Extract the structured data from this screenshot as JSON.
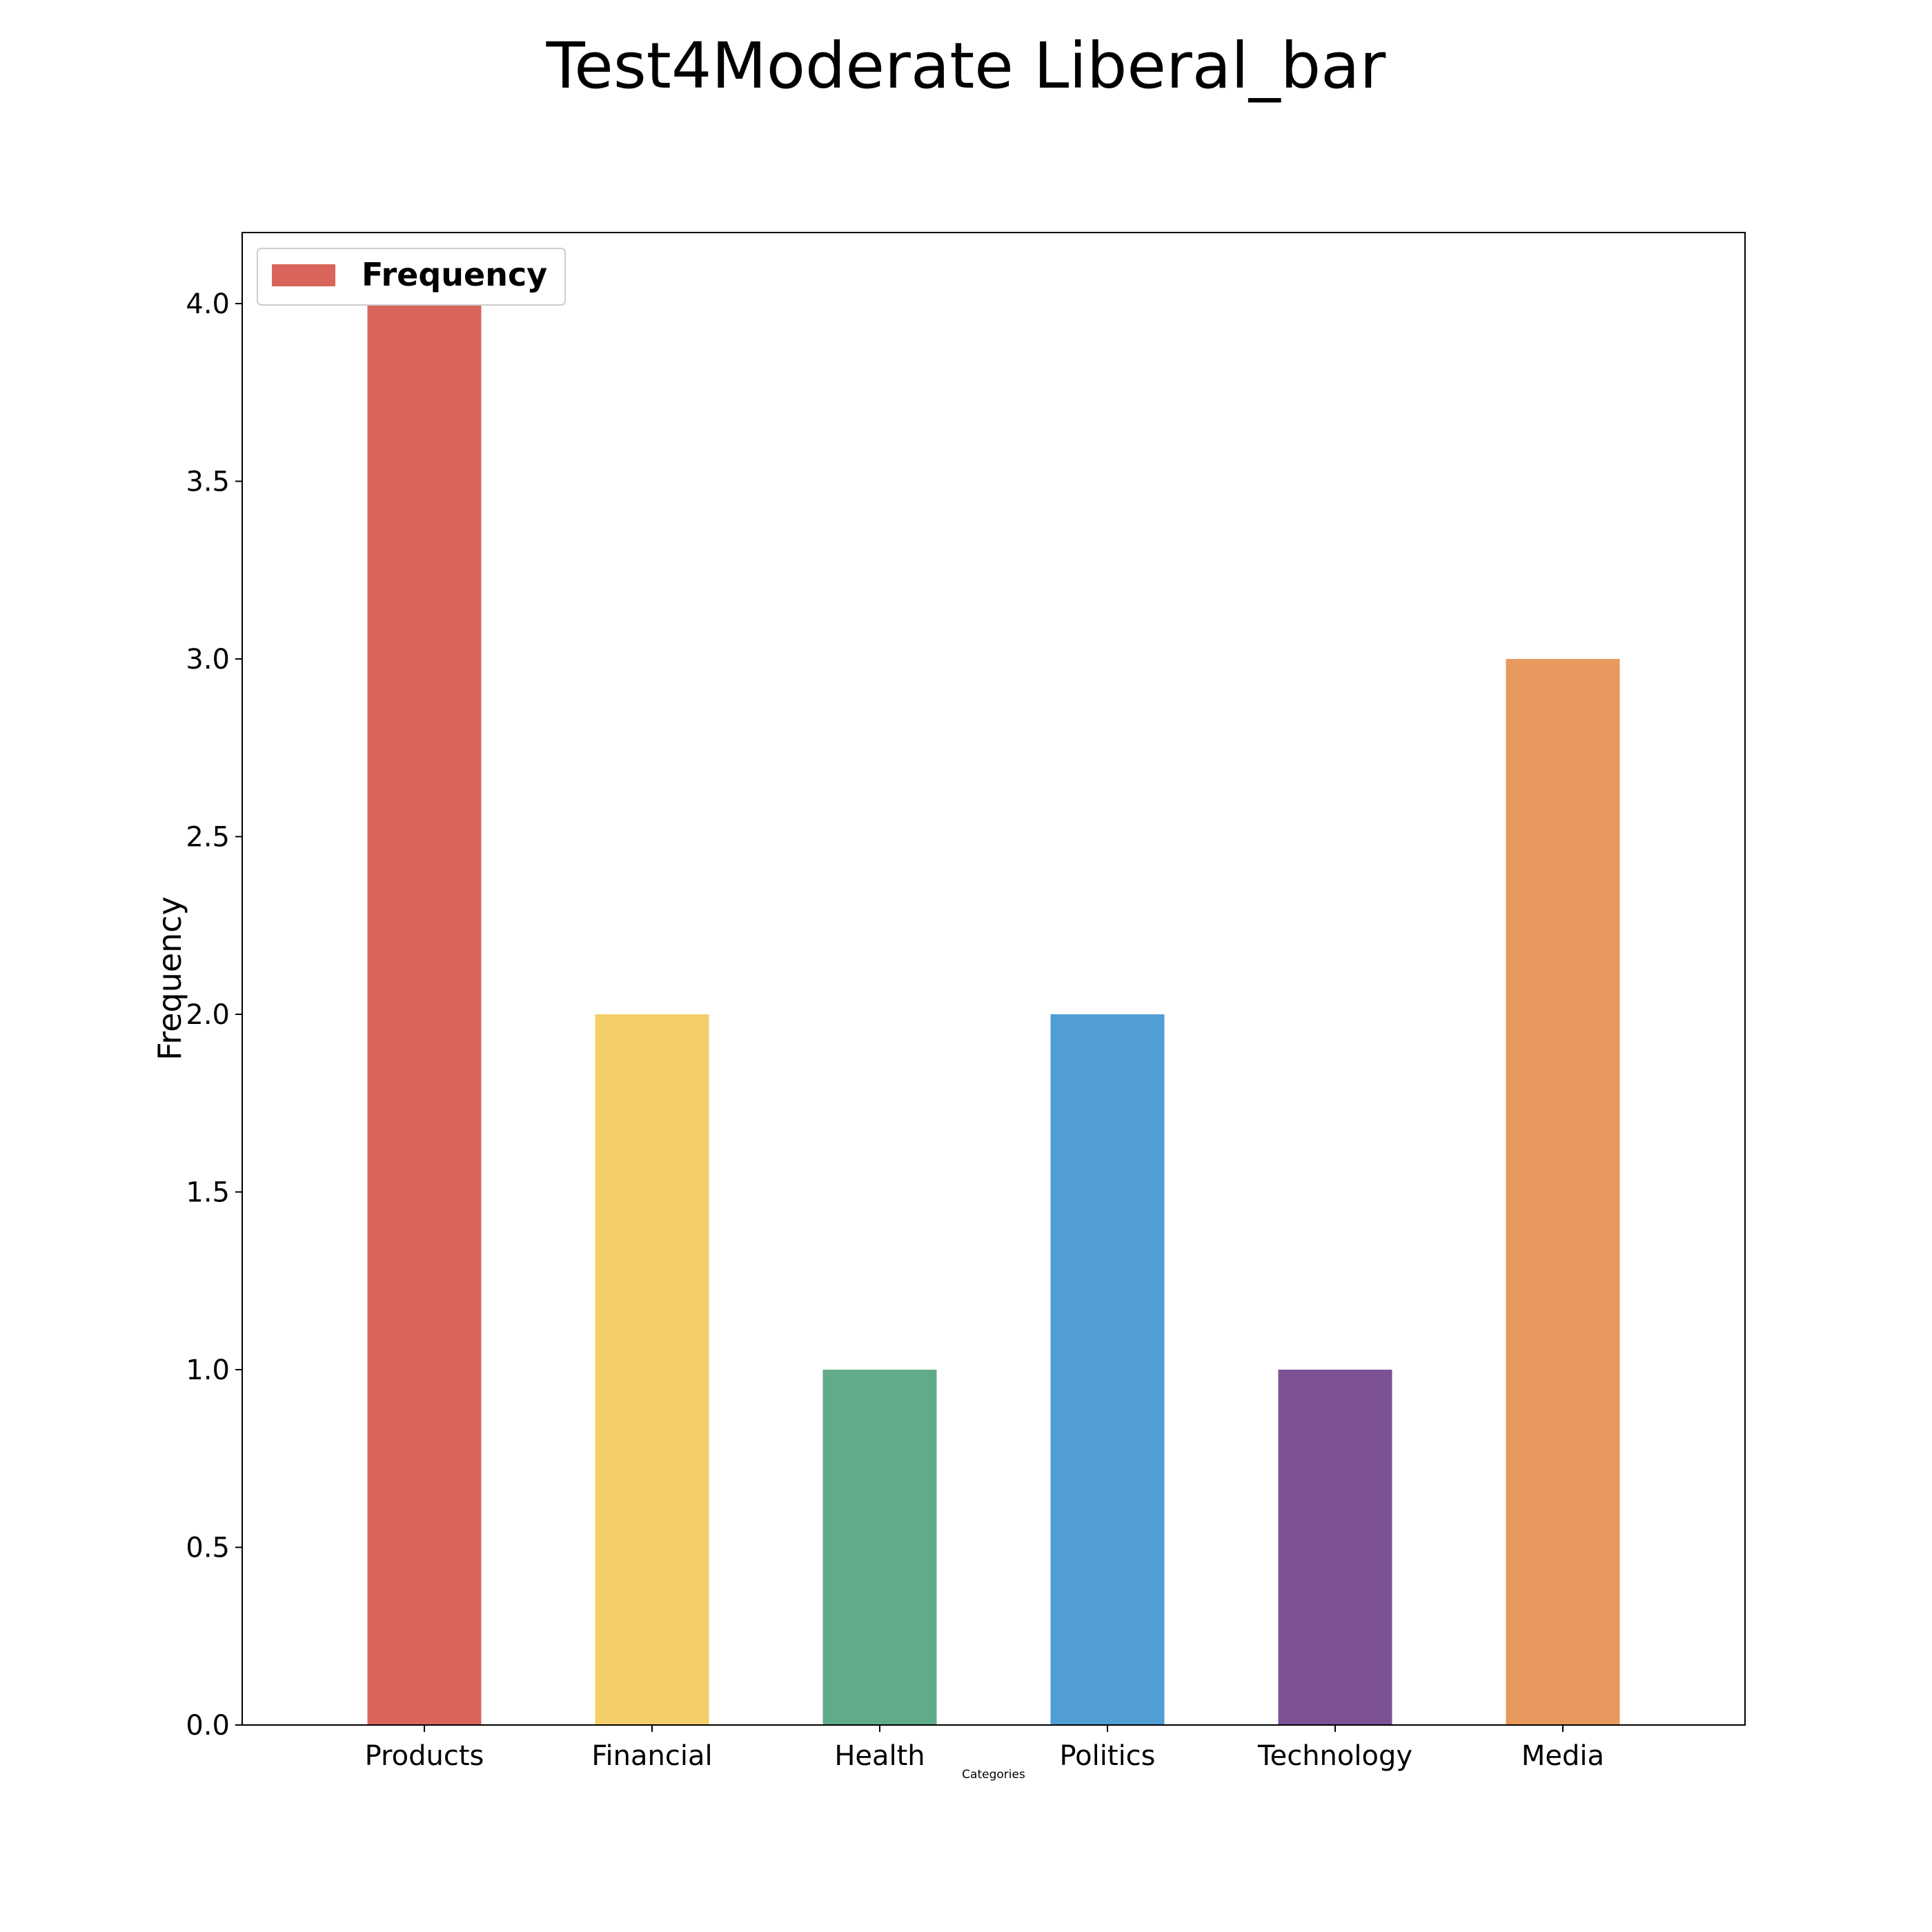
{
  "chart_data": {
    "type": "bar",
    "title": "Test4Moderate Liberal_bar",
    "xlabel": "Categories",
    "ylabel": "Frequency",
    "categories": [
      "Products",
      "Financial",
      "Health",
      "Politics",
      "Technology",
      "Media"
    ],
    "series": [
      {
        "name": "Frequency",
        "values": [
          4,
          2,
          1,
          2,
          1,
          3
        ],
        "colors": [
          "#d9655a",
          "#f4ce68",
          "#61ab8a",
          "#519ed6",
          "#7c5295",
          "#e8995e"
        ]
      }
    ],
    "ylim": [
      0,
      4.2
    ],
    "yticks": [
      "0.0",
      "0.5",
      "1.0",
      "1.5",
      "2.0",
      "2.5",
      "3.0",
      "3.5",
      "4.0"
    ],
    "grid": false,
    "legend": {
      "placement": "top-left",
      "entries": [
        "Frequency"
      ]
    }
  }
}
